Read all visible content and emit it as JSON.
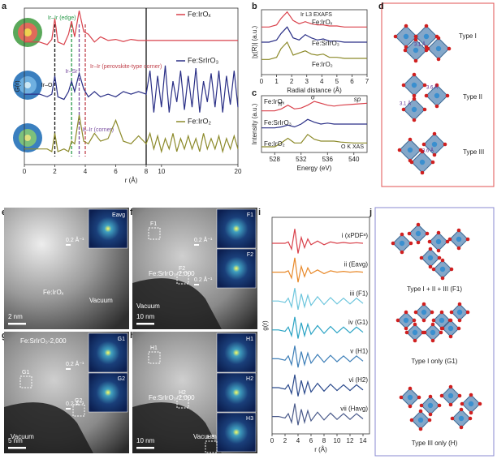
{
  "chart_data": [
    {
      "type": "line",
      "panel": "a",
      "ylabel": "G(r)",
      "xlabel": "r (Å)",
      "xlim": [
        0,
        20
      ],
      "xbreak": 8,
      "ylim": [
        0,
        3
      ],
      "xticks": [
        0,
        2,
        4,
        6,
        8,
        10,
        20
      ],
      "x": [
        0,
        1,
        1.5,
        1.8,
        2,
        2.2,
        2.6,
        2.9,
        3.1,
        3.3,
        3.6,
        3.9,
        4.2,
        4.6,
        5,
        5.5,
        6,
        6.5,
        7,
        7.5,
        8,
        8.5,
        9,
        9.5,
        10,
        10.5,
        11,
        11.5,
        12,
        12.5,
        13,
        13.5,
        14,
        14.5,
        15,
        15.5,
        16,
        16.5,
        17,
        17.5,
        18,
        18.5,
        19,
        19.5,
        20
      ],
      "series": [
        {
          "name": "Fe:IrOₓ",
          "color": "#d9414b",
          "values": [
            2.35,
            2.35,
            2.3,
            2.4,
            2.8,
            2.35,
            2.3,
            2.5,
            2.75,
            2.45,
            2.95,
            2.55,
            2.5,
            2.35,
            2.45,
            2.38,
            2.4,
            2.36,
            2.4,
            2.38,
            2.38,
            2.38,
            2.38,
            2.38,
            2.38,
            2.38,
            2.38,
            2.38,
            2.38,
            2.38,
            2.38,
            2.38,
            2.38,
            2.38,
            2.38,
            2.38,
            2.38,
            2.38,
            2.38,
            2.38,
            2.38,
            2.38,
            2.38,
            2.38,
            2.38
          ]
        },
        {
          "name": "Fe:SrIrO₃",
          "color": "#2a2f86",
          "values": [
            1.35,
            1.35,
            1.3,
            1.35,
            1.7,
            1.3,
            1.25,
            1.4,
            1.6,
            1.4,
            1.75,
            1.45,
            1.3,
            1.4,
            1.3,
            1.35,
            1.3,
            1.4,
            1.35,
            1.4,
            1.35,
            1.8,
            1.0,
            1.7,
            1.1,
            1.9,
            1.0,
            1.6,
            1.2,
            1.8,
            1.05,
            1.7,
            1.1,
            1.85,
            1.0,
            1.6,
            1.2,
            1.75,
            1.1,
            1.8,
            1.0,
            1.7,
            1.15,
            1.8,
            1.1
          ]
        },
        {
          "name": "Fe:IrO₂",
          "color": "#8c8a2a",
          "values": [
            0.3,
            0.3,
            0.3,
            0.25,
            0.6,
            0.25,
            0.3,
            0.25,
            0.45,
            0.4,
            0.95,
            0.45,
            0.4,
            0.6,
            0.45,
            0.5,
            0.85,
            0.45,
            0.4,
            0.55,
            0.4,
            0.6,
            0.3,
            0.55,
            0.25,
            0.5,
            0.3,
            0.6,
            0.25,
            0.5,
            0.3,
            0.55,
            0.3,
            0.5,
            0.25,
            0.6,
            0.3,
            0.5,
            0.3,
            0.55,
            0.25,
            0.5,
            0.3,
            0.55,
            0.3
          ]
        }
      ],
      "dashed_lines": [
        {
          "x": 2,
          "color": "#111111",
          "label": "Ir–O"
        },
        {
          "x": 3.1,
          "color": "#2a9a4a",
          "label": "Ir–Ir (edge)"
        },
        {
          "x": 3.6,
          "color": "#7a4fa0",
          "label": "Ir–Sr"
        },
        {
          "x": 4.0,
          "color": "#c0404a",
          "label": "Ir–Ir (perovskite-type corner)"
        }
      ],
      "annotation": "Ir–Ir (corner)"
    },
    {
      "type": "line",
      "panel": "b",
      "title": "Ir L3 EXAFS",
      "ylabel": "|χ(R)| (a.u.)",
      "xlabel": "Radial distance (Å)",
      "xlim": [
        0,
        7
      ],
      "ylim": [
        0,
        3
      ],
      "xticks": [
        0,
        1,
        2,
        3,
        4,
        5,
        6,
        7
      ],
      "x": [
        0,
        0.5,
        1,
        1.3,
        1.7,
        2.1,
        2.5,
        2.9,
        3.3,
        3.7,
        4.1,
        4.5,
        5,
        5.5,
        6,
        6.5,
        7
      ],
      "series": [
        {
          "name": "Fe:IrOₓ",
          "color": "#d9414b",
          "values": [
            2.2,
            2.2,
            2.3,
            2.6,
            2.9,
            2.5,
            2.35,
            2.45,
            2.35,
            2.3,
            2.3,
            2.25,
            2.25,
            2.2,
            2.2,
            2.2,
            2.2
          ]
        },
        {
          "name": "Fe:SrIrO₃",
          "color": "#2a2f86",
          "values": [
            1.5,
            1.5,
            1.6,
            1.9,
            2.2,
            1.7,
            1.6,
            1.85,
            1.7,
            1.6,
            1.65,
            1.55,
            1.55,
            1.5,
            1.5,
            1.5,
            1.5
          ]
        },
        {
          "name": "Fe:IrO₂",
          "color": "#8c8a2a",
          "values": [
            0.7,
            0.7,
            0.8,
            1.2,
            1.5,
            0.9,
            1.0,
            1.1,
            0.95,
            0.9,
            0.95,
            0.8,
            0.8,
            0.75,
            0.75,
            0.75,
            0.75
          ]
        }
      ]
    },
    {
      "type": "line",
      "panel": "c",
      "title": "O K XAS",
      "ylabel": "Intensity (a.u.)",
      "xlabel": "Energy (eV)",
      "xlim": [
        526,
        542
      ],
      "ylim": [
        0,
        3
      ],
      "xticks": [
        528,
        532,
        536,
        540
      ],
      "x": [
        526,
        528,
        529,
        530,
        531,
        532,
        533,
        534,
        535,
        536,
        537,
        538,
        540,
        542
      ],
      "series": [
        {
          "name": "Fe:IrOₓ",
          "color": "#d9414b",
          "values": [
            2.2,
            2.2,
            2.3,
            2.5,
            2.3,
            2.35,
            2.5,
            2.7,
            2.6,
            2.5,
            2.45,
            2.5,
            2.55,
            2.6
          ]
        },
        {
          "name": "Fe:SrIrO₃",
          "color": "#2a2f86",
          "values": [
            1.3,
            1.3,
            1.35,
            1.45,
            1.35,
            1.5,
            1.75,
            1.6,
            1.5,
            1.55,
            1.5,
            1.5,
            1.5,
            1.5
          ]
        },
        {
          "name": "Fe:IrO₂",
          "color": "#8c8a2a",
          "values": [
            0.3,
            0.3,
            0.5,
            0.75,
            0.5,
            0.5,
            0.95,
            0.7,
            0.6,
            0.6,
            0.6,
            0.55,
            0.5,
            0.5
          ]
        }
      ],
      "annotations": [
        "π",
        "σ",
        "sp"
      ]
    },
    {
      "type": "line",
      "panel": "i",
      "ylabel": "g(r)",
      "xlabel": "r (Å)",
      "xlim": [
        0,
        15
      ],
      "ylim": [
        0,
        7.5
      ],
      "xticks": [
        0,
        2,
        4,
        6,
        8,
        10,
        12,
        14
      ],
      "x": [
        0,
        1,
        2,
        2.5,
        3,
        3.5,
        4,
        4.5,
        5,
        5.5,
        6,
        7,
        8,
        9,
        10,
        11,
        12,
        13,
        14
      ],
      "series": [
        {
          "name": "i (xPDFᵃ)",
          "color": "#d9414b",
          "values": [
            6.6,
            6.6,
            6.6,
            6.65,
            6.4,
            7.1,
            6.25,
            6.8,
            6.45,
            6.75,
            6.55,
            6.68,
            6.55,
            6.65,
            6.6,
            6.63,
            6.6,
            6.62,
            6.6
          ]
        },
        {
          "name": "ii (Eavg)",
          "color": "#e8892a",
          "values": [
            5.6,
            5.6,
            5.6,
            5.65,
            5.4,
            6.1,
            5.25,
            5.8,
            5.45,
            5.75,
            5.55,
            5.68,
            5.55,
            5.65,
            5.6,
            5.63,
            5.6,
            5.62,
            5.6
          ]
        },
        {
          "name": "iii (F1)",
          "color": "#6ec6dd",
          "values": [
            4.6,
            4.6,
            4.55,
            4.7,
            4.4,
            5.05,
            4.3,
            4.85,
            4.4,
            4.8,
            4.45,
            4.75,
            4.48,
            4.72,
            4.5,
            4.7,
            4.5,
            4.7,
            4.52
          ]
        },
        {
          "name": "iv (G1)",
          "color": "#2aa3c4",
          "values": [
            3.6,
            3.6,
            3.55,
            3.7,
            3.4,
            4.05,
            3.3,
            3.85,
            3.4,
            3.8,
            3.45,
            3.75,
            3.48,
            3.72,
            3.5,
            3.7,
            3.5,
            3.7,
            3.52
          ]
        },
        {
          "name": "v (H1)",
          "color": "#3e7fb8",
          "values": [
            2.6,
            2.6,
            2.55,
            2.7,
            2.4,
            3.05,
            2.3,
            2.85,
            2.4,
            2.8,
            2.45,
            2.75,
            2.48,
            2.72,
            2.5,
            2.7,
            2.5,
            2.7,
            2.52
          ]
        },
        {
          "name": "vi (H2)",
          "color": "#2b4a8c",
          "values": [
            1.6,
            1.6,
            1.55,
            1.7,
            1.4,
            2.05,
            1.3,
            1.85,
            1.4,
            1.8,
            1.45,
            1.75,
            1.48,
            1.72,
            1.5,
            1.7,
            1.5,
            1.7,
            1.52
          ]
        },
        {
          "name": "vii (Havg)",
          "color": "#4a5a8a",
          "values": [
            0.6,
            0.6,
            0.55,
            0.7,
            0.4,
            1.05,
            0.3,
            0.85,
            0.4,
            0.8,
            0.45,
            0.75,
            0.48,
            0.72,
            0.5,
            0.7,
            0.5,
            0.7,
            0.52
          ]
        }
      ]
    }
  ],
  "panel_labels": [
    "a",
    "b",
    "c",
    "d",
    "e",
    "f",
    "g",
    "h",
    "i",
    "j"
  ],
  "panel_d": {
    "types": [
      "Type I",
      "Type II",
      "Type III"
    ],
    "distances": [
      "3.1 Å",
      "3.6 Å",
      "3.1 Å",
      "3.6 Å"
    ]
  },
  "panel_e": {
    "sample": "Fe:IrOₓ",
    "region": "Vacuum",
    "scale": "2 nm",
    "insets": [
      "Eavg"
    ],
    "inset_scale": "0.2 Å⁻¹"
  },
  "panel_f": {
    "sample": "Fe:SrIrO₃-2,000",
    "region": "Vacuum",
    "scale": "10 nm",
    "insets": [
      "F1",
      "F2"
    ],
    "inset_scale": "0.2 Å⁻¹"
  },
  "panel_g": {
    "sample": "Fe:SrIrO₃-2,000",
    "region": "Vacuum",
    "scale": "5 nm",
    "insets": [
      "G1",
      "G2"
    ],
    "inset_scale": "0.2 Å⁻¹"
  },
  "panel_h": {
    "sample": "Fe:SrIrO₃-2,000",
    "region": "Vacuum",
    "scale": "10 nm",
    "insets": [
      "H1",
      "H2",
      "H3"
    ]
  },
  "panel_j": {
    "types": [
      "Type I + II + III (F1)",
      "Type I only (G1)",
      "Type III only (H)"
    ]
  }
}
